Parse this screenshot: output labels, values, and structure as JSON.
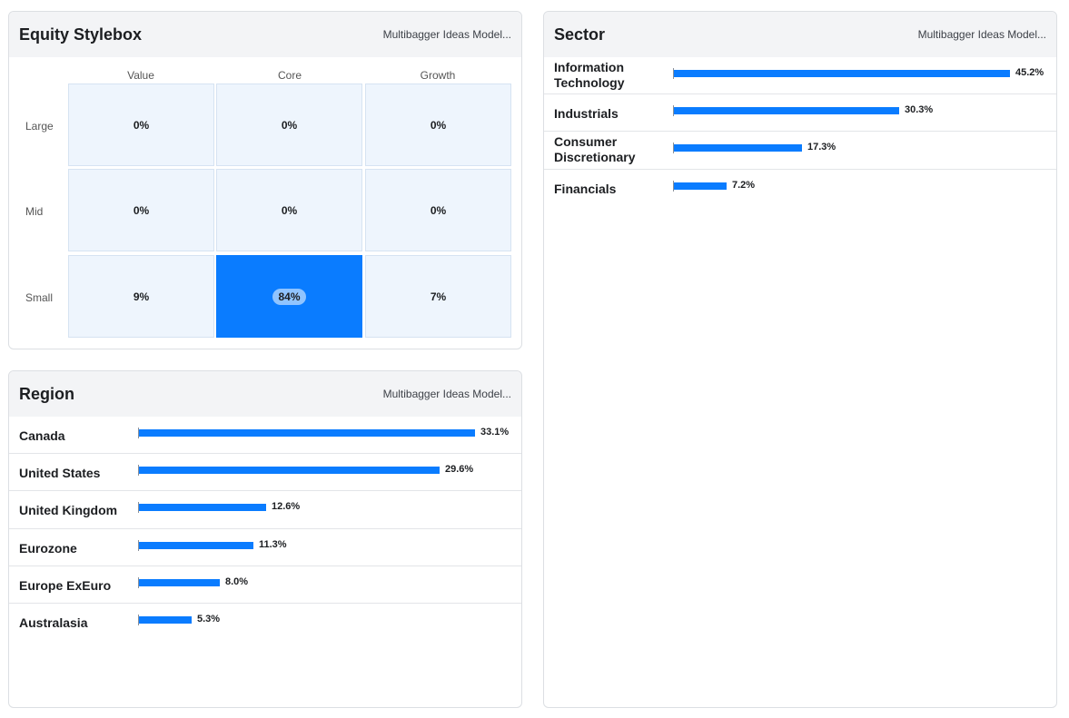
{
  "stylebox": {
    "title": "Equity Stylebox",
    "subtitle": "Multibagger Ideas Model...",
    "columns": [
      "Value",
      "Core",
      "Growth"
    ],
    "rows": [
      "Large",
      "Mid",
      "Small"
    ],
    "cells": [
      [
        "0%",
        "0%",
        "0%"
      ],
      [
        "0%",
        "0%",
        "0%"
      ],
      [
        "9%",
        "84%",
        "7%"
      ]
    ],
    "highlight_color": "#0a7cff"
  },
  "region": {
    "title": "Region",
    "subtitle": "Multibagger Ideas Model...",
    "max_value": 33.1,
    "items": [
      {
        "label": "Canada",
        "value": 33.1,
        "display": "33.1%"
      },
      {
        "label": "United States",
        "value": 29.6,
        "display": "29.6%"
      },
      {
        "label": "United Kingdom",
        "value": 12.6,
        "display": "12.6%"
      },
      {
        "label": "Eurozone",
        "value": 11.3,
        "display": "11.3%"
      },
      {
        "label": "Europe ExEuro",
        "value": 8.0,
        "display": "8.0%"
      },
      {
        "label": "Australasia",
        "value": 5.3,
        "display": "5.3%"
      }
    ]
  },
  "sector": {
    "title": "Sector",
    "subtitle": "Multibagger Ideas Model...",
    "max_value": 45.2,
    "items": [
      {
        "label": "Information Technology",
        "value": 45.2,
        "display": "45.2%"
      },
      {
        "label": "Industrials",
        "value": 30.3,
        "display": "30.3%"
      },
      {
        "label": "Consumer Discretionary",
        "value": 17.3,
        "display": "17.3%"
      },
      {
        "label": "Financials",
        "value": 7.2,
        "display": "7.2%"
      }
    ]
  },
  "bar_color": "#0a7cff"
}
